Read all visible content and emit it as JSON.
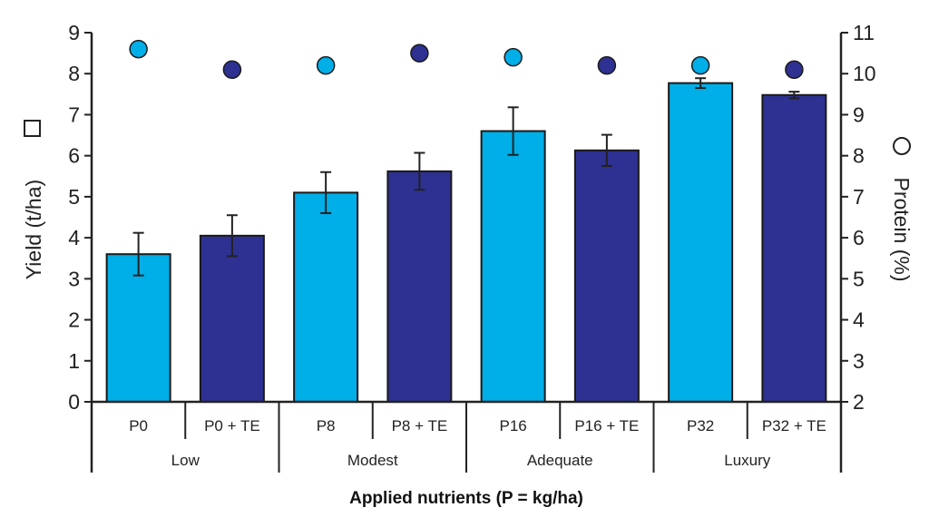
{
  "chart_data": {
    "type": "bar",
    "xlabel": "Applied nutrients (P = kg/ha)",
    "ylabel": "Yield (t/ha)",
    "y2label": "Protein (%)",
    "ylim": [
      0,
      9
    ],
    "y2lim": [
      2,
      11
    ],
    "yticks": [
      "0",
      "1",
      "2",
      "3",
      "4",
      "5",
      "6",
      "7",
      "8",
      "9"
    ],
    "y2ticks": [
      "2",
      "3",
      "4",
      "5",
      "6",
      "7",
      "8",
      "9",
      "10",
      "11"
    ],
    "categories": [
      "P0",
      "P0 + TE",
      "P8",
      "P8 + TE",
      "P16",
      "P16 + TE",
      "P32",
      "P32 + TE"
    ],
    "groups": [
      {
        "label": "Low",
        "span": [
          0,
          1
        ]
      },
      {
        "label": "Modest",
        "span": [
          2,
          3
        ]
      },
      {
        "label": "Adequate",
        "span": [
          4,
          5
        ]
      },
      {
        "label": "Luxury",
        "span": [
          6,
          7
        ]
      }
    ],
    "series": [
      {
        "type": "bar",
        "axis": "left",
        "values": [
          3.6,
          4.05,
          5.1,
          5.62,
          6.6,
          6.13,
          7.77,
          7.48
        ],
        "errors": [
          0.52,
          0.5,
          0.5,
          0.45,
          0.58,
          0.38,
          0.12,
          0.08
        ],
        "colors": [
          "#00aee8",
          "#2e3192",
          "#00aee8",
          "#2e3192",
          "#00aee8",
          "#2e3192",
          "#00aee8",
          "#2e3192"
        ]
      },
      {
        "type": "scatter",
        "axis": "right",
        "values": [
          10.6,
          10.1,
          10.2,
          10.5,
          10.4,
          10.2,
          10.2,
          10.1
        ],
        "colors": [
          "#00aee8",
          "#2e3192",
          "#00aee8",
          "#2e3192",
          "#00aee8",
          "#2e3192",
          "#00aee8",
          "#2e3192"
        ]
      }
    ],
    "grid": false,
    "legend": "none"
  }
}
